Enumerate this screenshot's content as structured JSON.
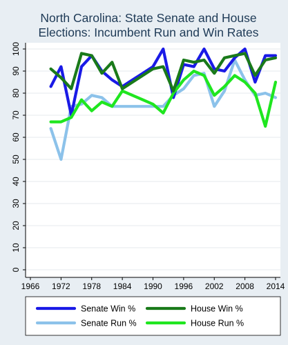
{
  "chart_data": {
    "type": "line",
    "title_lines": [
      "North Carolina: State Senate and House",
      "Elections: Incumbent Run and Win Rates"
    ],
    "xlabel": "",
    "ylabel": "",
    "xlim": [
      1966,
      2014
    ],
    "ylim": [
      0,
      100
    ],
    "x_ticks": [
      "1966",
      "1972",
      "1978",
      "1984",
      "1990",
      "1996",
      "2002",
      "2008",
      "2014"
    ],
    "y_ticks": [
      "0",
      "10",
      "20",
      "30",
      "40",
      "50",
      "60",
      "70",
      "80",
      "90",
      "100"
    ],
    "grid": "horizontal",
    "legend_position": "bottom",
    "series": [
      {
        "name": "Senate Run %",
        "color": "#8cc2ea",
        "x": [
          1970,
          1972,
          1974,
          1976,
          1978,
          1980,
          1982,
          1984,
          1986,
          1988,
          1990,
          1992,
          1994,
          1996,
          1998,
          2000,
          2002,
          2004,
          2006,
          2008,
          2010,
          2012,
          2014
        ],
        "y": [
          64,
          50,
          74,
          75,
          79,
          78,
          74,
          74,
          74,
          74,
          74,
          74,
          79,
          82,
          88,
          89,
          74,
          81,
          95,
          86,
          79,
          80,
          78
        ]
      },
      {
        "name": "Senate Win %",
        "color": "#1a1ae6",
        "x": [
          1970,
          1972,
          1974,
          1976,
          1978,
          1980,
          1982,
          1984,
          1986,
          1988,
          1990,
          1992,
          1994,
          1996,
          1998,
          2000,
          2002,
          2004,
          2006,
          2008,
          2010,
          2012,
          2014
        ],
        "y": [
          83,
          92,
          70,
          92,
          97,
          90,
          86,
          83,
          86,
          89,
          92,
          100,
          78,
          93,
          92,
          100,
          91,
          90,
          96,
          100,
          85,
          97,
          97
        ]
      },
      {
        "name": "House Run %",
        "color": "#1fe61f",
        "x": [
          1970,
          1972,
          1974,
          1976,
          1978,
          1980,
          1982,
          1984,
          1986,
          1988,
          1990,
          1992,
          1994,
          1996,
          1998,
          2000,
          2002,
          2004,
          2006,
          2008,
          2010,
          2012,
          2014
        ],
        "y": [
          67,
          67,
          69,
          77,
          72,
          76,
          74,
          81,
          79,
          77,
          75,
          71,
          80,
          86,
          90,
          88,
          79,
          83,
          88,
          85,
          80,
          65,
          85
        ]
      },
      {
        "name": "House Win %",
        "color": "#1a7a1a",
        "x": [
          1970,
          1972,
          1974,
          1976,
          1978,
          1980,
          1982,
          1984,
          1986,
          1988,
          1990,
          1992,
          1994,
          1996,
          1998,
          2000,
          2002,
          2004,
          2006,
          2008,
          2010,
          2012,
          2014
        ],
        "y": [
          91,
          87,
          82,
          98,
          97,
          89,
          94,
          82,
          85,
          88,
          91,
          92,
          81,
          95,
          94,
          95,
          89,
          96,
          97,
          98,
          88,
          95,
          96
        ]
      }
    ],
    "legend": [
      {
        "label": "Senate Win %",
        "color": "#1a1ae6"
      },
      {
        "label": "House Win %",
        "color": "#1a7a1a"
      },
      {
        "label": "Senate Run %",
        "color": "#8cc2ea"
      },
      {
        "label": "House Run %",
        "color": "#1fe61f"
      }
    ]
  }
}
